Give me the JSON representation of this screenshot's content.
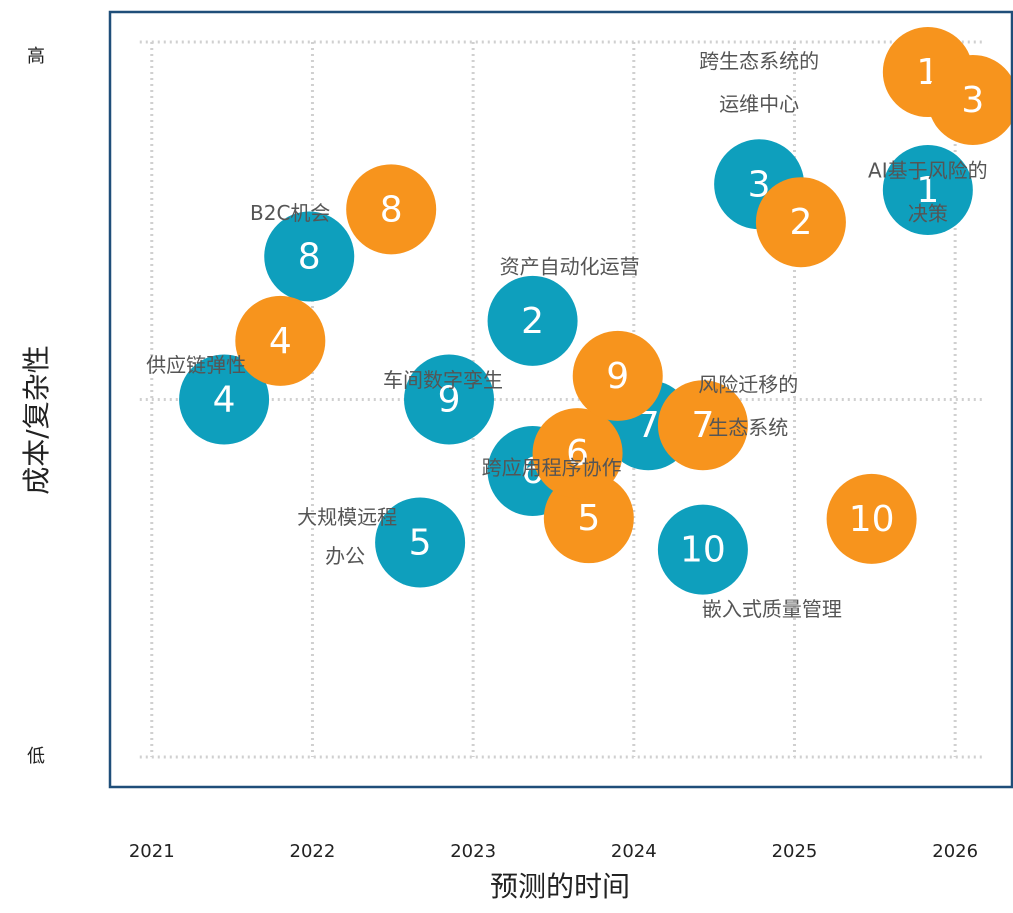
{
  "chart_data": {
    "type": "bubble",
    "xlabel": "预测的时间",
    "ylabel": "成本/复杂性",
    "xlim": [
      2020.74,
      2026.36
    ],
    "xticks": [
      2021,
      2022,
      2023,
      2024,
      2025,
      2026
    ],
    "ylim": [
      -0.42,
      10.42
    ],
    "yticks": [
      {
        "value": 10,
        "label": "高"
      },
      {
        "value": 0,
        "label": "低"
      }
    ],
    "ygrid": [
      0,
      5,
      10
    ],
    "grid": true,
    "series": [
      {
        "color": "#0e9fbd",
        "labels": [
          "1",
          "2",
          "3",
          "4",
          "5",
          "6",
          "7",
          "8",
          "9",
          "10"
        ],
        "names": [
          [
            "AI基于风险的",
            "决策"
          ],
          [
            "资产自动化运营"
          ],
          [
            "跨生态系统的",
            "运维中心"
          ],
          [
            "供应链弹性"
          ],
          [
            "大规模远程",
            "办公"
          ],
          [
            "跨应用程序协作"
          ],
          [
            "风险迁移的",
            "生态系统"
          ],
          [
            "B2C机会"
          ],
          [
            "车间数字孪生"
          ],
          [
            "嵌入式质量管理"
          ]
        ],
        "x": [
          2025.83,
          2023.37,
          2024.78,
          2021.45,
          2022.67,
          2023.37,
          2024.09,
          2021.98,
          2022.85,
          2024.43
        ],
        "values": [
          7.93,
          6.1,
          8.01,
          5.0,
          3.0,
          4.0,
          4.64,
          7.0,
          5.0,
          2.9
        ]
      },
      {
        "color": "#f7941d",
        "labels": [
          "1",
          "2",
          "3",
          "4",
          "5",
          "6",
          "7",
          "8",
          "9",
          "10"
        ],
        "x": [
          2025.83,
          2025.04,
          2026.11,
          2021.8,
          2023.72,
          2023.65,
          2024.43,
          2022.49,
          2023.9,
          2025.48
        ],
        "values": [
          9.58,
          7.48,
          9.19,
          5.82,
          3.34,
          4.25,
          4.64,
          7.66,
          5.33,
          3.33
        ]
      }
    ]
  }
}
